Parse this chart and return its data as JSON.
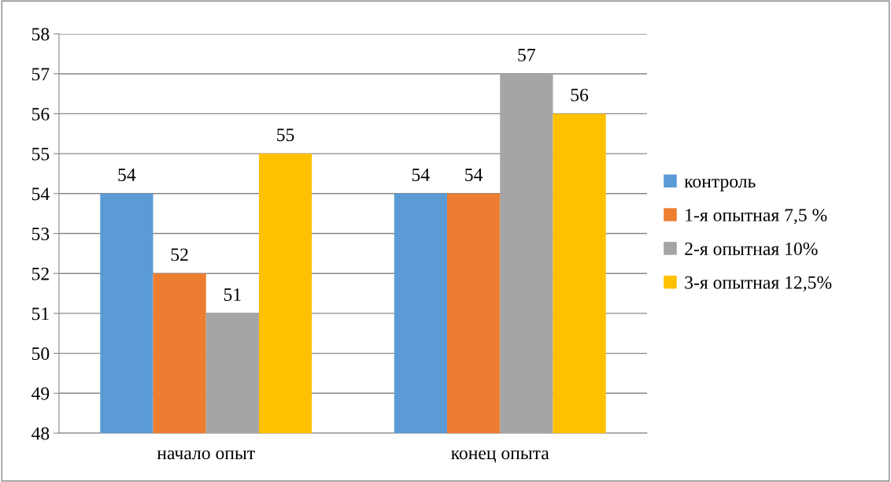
{
  "chart_data": {
    "type": "bar",
    "categories": [
      "начало опыт",
      "конец опыта"
    ],
    "series": [
      {
        "name": "контроль",
        "color": "#5b9bd5",
        "values": [
          54,
          54
        ]
      },
      {
        "name": "1-я опытная 7,5 %",
        "color": "#ed7d31",
        "values": [
          52,
          54
        ]
      },
      {
        "name": "2-я опытная 10%",
        "color": "#a5a5a5",
        "values": [
          51,
          57
        ]
      },
      {
        "name": "3-я опытная 12,5%",
        "color": "#ffc000",
        "values": [
          55,
          56
        ]
      }
    ],
    "ylim": [
      48,
      58
    ],
    "yticks": [
      48,
      49,
      50,
      51,
      52,
      53,
      54,
      55,
      56,
      57,
      58
    ],
    "grid": "y",
    "legend": "right",
    "data_labels": true
  }
}
